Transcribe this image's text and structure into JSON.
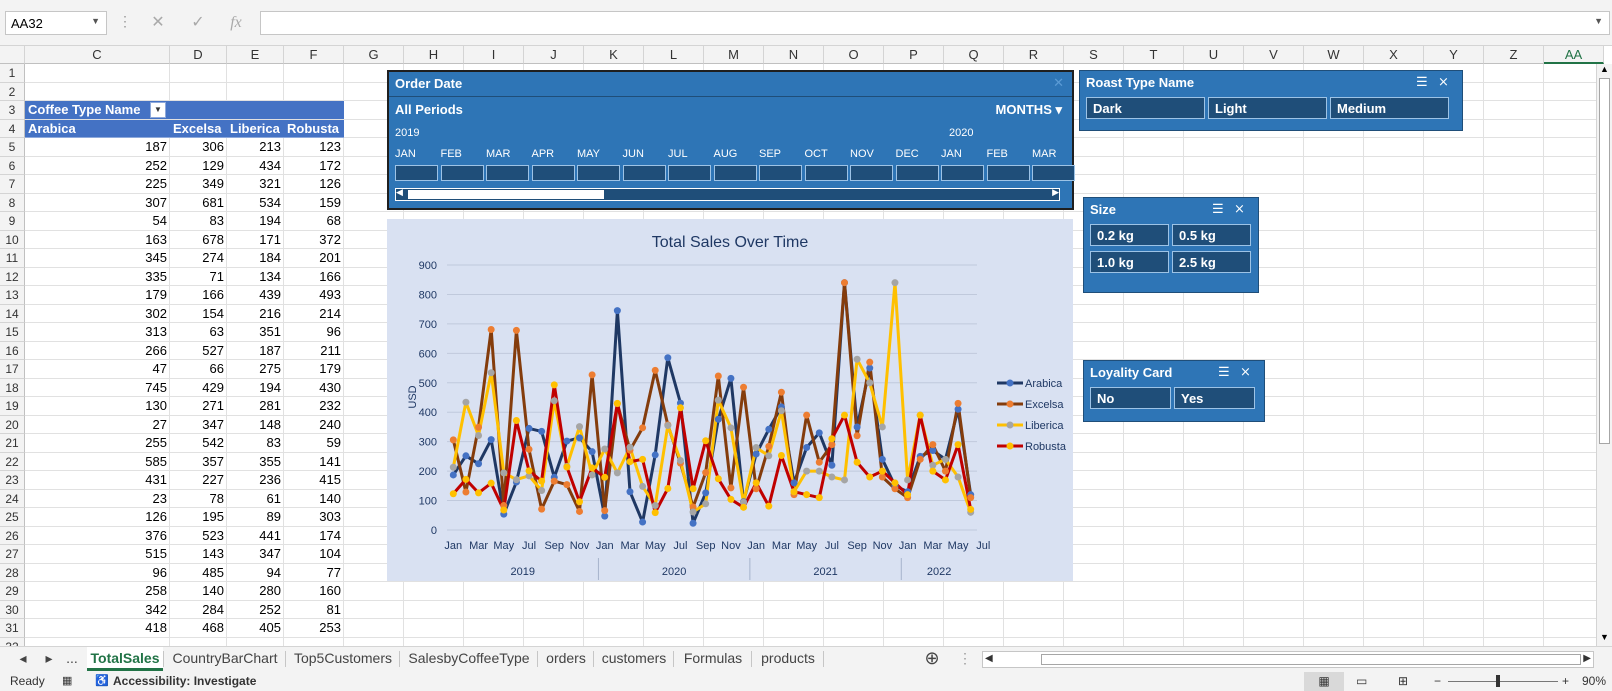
{
  "formula": {
    "name_box": "AA32",
    "value": ""
  },
  "columns": [
    "C",
    "D",
    "E",
    "F",
    "G",
    "H",
    "I",
    "J",
    "K",
    "L",
    "M",
    "N",
    "O",
    "P",
    "Q",
    "R",
    "S",
    "T",
    "U",
    "V",
    "W",
    "X",
    "Y",
    "Z",
    "AA"
  ],
  "rows": [
    "1",
    "2",
    "3",
    "4",
    "5",
    "6",
    "7",
    "8",
    "9",
    "10",
    "11",
    "12",
    "13",
    "14",
    "15",
    "16",
    "17",
    "18",
    "19",
    "20",
    "21",
    "22",
    "23",
    "24",
    "25",
    "26",
    "27",
    "28",
    "29",
    "30",
    "31",
    "32"
  ],
  "pivot": {
    "filter_label": "Coffee Type Name",
    "headers": [
      "Arabica",
      "Excelsa",
      "Liberica",
      "Robusta"
    ],
    "values": [
      [
        187,
        306,
        213,
        123
      ],
      [
        252,
        129,
        434,
        172
      ],
      [
        225,
        349,
        321,
        126
      ],
      [
        307,
        681,
        534,
        159
      ],
      [
        54,
        83,
        194,
        68
      ],
      [
        163,
        678,
        171,
        372
      ],
      [
        345,
        274,
        184,
        201
      ],
      [
        335,
        71,
        134,
        166
      ],
      [
        179,
        166,
        439,
        493
      ],
      [
        302,
        154,
        216,
        214
      ],
      [
        313,
        63,
        351,
        96
      ],
      [
        266,
        527,
        187,
        211
      ],
      [
        47,
        66,
        275,
        179
      ],
      [
        745,
        429,
        194,
        430
      ],
      [
        130,
        271,
        281,
        232
      ],
      [
        27,
        347,
        148,
        240
      ],
      [
        255,
        542,
        83,
        59
      ],
      [
        585,
        357,
        355,
        141
      ],
      [
        431,
        227,
        236,
        415
      ],
      [
        23,
        78,
        61,
        140
      ],
      [
        126,
        195,
        89,
        303
      ],
      [
        376,
        523,
        441,
        174
      ],
      [
        515,
        143,
        347,
        104
      ],
      [
        96,
        485,
        94,
        77
      ],
      [
        258,
        140,
        280,
        160
      ],
      [
        342,
        284,
        252,
        81
      ],
      [
        418,
        468,
        405,
        253
      ]
    ]
  },
  "timeline": {
    "title": "Order Date",
    "period": "All Periods",
    "level": "MONTHS",
    "years": [
      "2019",
      "2020"
    ],
    "months": [
      "JAN",
      "FEB",
      "MAR",
      "APR",
      "MAY",
      "JUN",
      "JUL",
      "AUG",
      "SEP",
      "OCT",
      "NOV",
      "DEC",
      "JAN",
      "FEB",
      "MAR"
    ]
  },
  "slicers": {
    "roast": {
      "title": "Roast Type Name",
      "items": [
        "Dark",
        "Light",
        "Medium"
      ]
    },
    "size": {
      "title": "Size",
      "items": [
        "0.2 kg",
        "0.5 kg",
        "1.0 kg",
        "2.5 kg"
      ]
    },
    "loyalty": {
      "title": "Loyality Card",
      "items": [
        "No",
        "Yes"
      ]
    }
  },
  "chart_data": {
    "type": "line",
    "title": "Total Sales Over Time",
    "ylabel": "USD",
    "ylim": [
      0,
      900
    ],
    "yticks": [
      0,
      100,
      200,
      300,
      400,
      500,
      600,
      700,
      800,
      900
    ],
    "x_month_labels": [
      "Jan",
      "Mar",
      "May",
      "Jul",
      "Sep",
      "Nov",
      "Jan",
      "Mar",
      "May",
      "Jul",
      "Sep",
      "Nov",
      "Jan",
      "Mar",
      "May",
      "Jul",
      "Sep",
      "Nov",
      "Jan",
      "Mar",
      "May",
      "Jul"
    ],
    "years": [
      "2019",
      "2020",
      "2021",
      "2022"
    ],
    "legend_position": "right",
    "series": [
      {
        "name": "Arabica",
        "color": "#1f3864",
        "values": [
          187,
          252,
          225,
          307,
          54,
          163,
          345,
          335,
          179,
          302,
          313,
          266,
          47,
          745,
          130,
          27,
          255,
          585,
          431,
          23,
          126,
          376,
          515,
          96,
          258,
          342,
          418,
          160,
          280,
          330,
          220,
          840,
          350,
          550,
          240,
          150,
          130,
          250,
          270,
          240,
          410,
          120
        ]
      },
      {
        "name": "Excelsa",
        "color": "#843c0c",
        "values": [
          306,
          129,
          349,
          681,
          83,
          678,
          274,
          71,
          166,
          154,
          63,
          527,
          66,
          429,
          271,
          347,
          542,
          357,
          227,
          78,
          195,
          523,
          143,
          485,
          140,
          284,
          468,
          120,
          390,
          230,
          290,
          840,
          320,
          570,
          180,
          140,
          110,
          240,
          290,
          200,
          430,
          110
        ]
      },
      {
        "name": "Liberica",
        "color": "#ffc000",
        "values": [
          213,
          434,
          321,
          534,
          194,
          171,
          184,
          134,
          439,
          216,
          351,
          187,
          275,
          194,
          281,
          148,
          83,
          355,
          236,
          61,
          89,
          441,
          347,
          94,
          280,
          252,
          405,
          130,
          200,
          200,
          180,
          170,
          580,
          500,
          350,
          840,
          170,
          390,
          220,
          240,
          180,
          60
        ]
      },
      {
        "name": "Robusta",
        "color": "#c00000",
        "values": [
          123,
          172,
          126,
          159,
          68,
          372,
          201,
          166,
          493,
          214,
          96,
          211,
          179,
          430,
          232,
          240,
          59,
          141,
          415,
          140,
          303,
          174,
          104,
          77,
          160,
          81,
          253,
          130,
          120,
          110,
          310,
          390,
          230,
          180,
          200,
          160,
          120,
          390,
          200,
          170,
          290,
          70
        ]
      }
    ]
  },
  "sheet_tabs": [
    "TotalSales",
    "CountryBarChart",
    "Top5Customers",
    "SalesbyCoffeeType",
    "orders",
    "customers",
    "Formulas",
    "products"
  ],
  "active_tab": "TotalSales",
  "status": {
    "ready": "Ready",
    "accessibility": "Accessibility: Investigate",
    "zoom": "90%"
  }
}
